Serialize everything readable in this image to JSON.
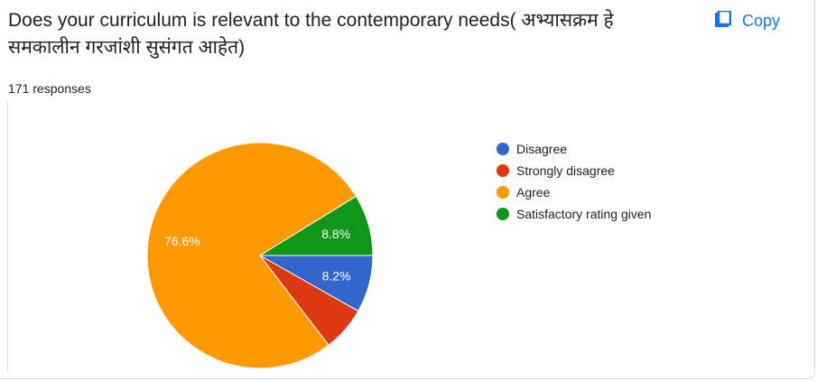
{
  "question": {
    "title": "Does your curriculum is  relevant to the contemporary needs( अभ्यासक्रम हे समकालीन गरजांशी सुसंगत आहेत)",
    "copy_label": "Copy",
    "responses": "171 responses"
  },
  "icons": {
    "copy": "copy-icon"
  },
  "chart_data": {
    "type": "pie",
    "slices": [
      {
        "label": "Disagree",
        "value": 8.2,
        "display": "8.2%",
        "color": "#3366cc"
      },
      {
        "label": "Strongly disagree",
        "value": 6.4,
        "display": "",
        "color": "#dc3912"
      },
      {
        "label": "Agree",
        "value": 76.6,
        "display": "76.6%",
        "color": "#ff9900"
      },
      {
        "label": "Satisfactory rating given",
        "value": 8.8,
        "display": "8.8%",
        "color": "#109618"
      }
    ],
    "legend": "right"
  }
}
